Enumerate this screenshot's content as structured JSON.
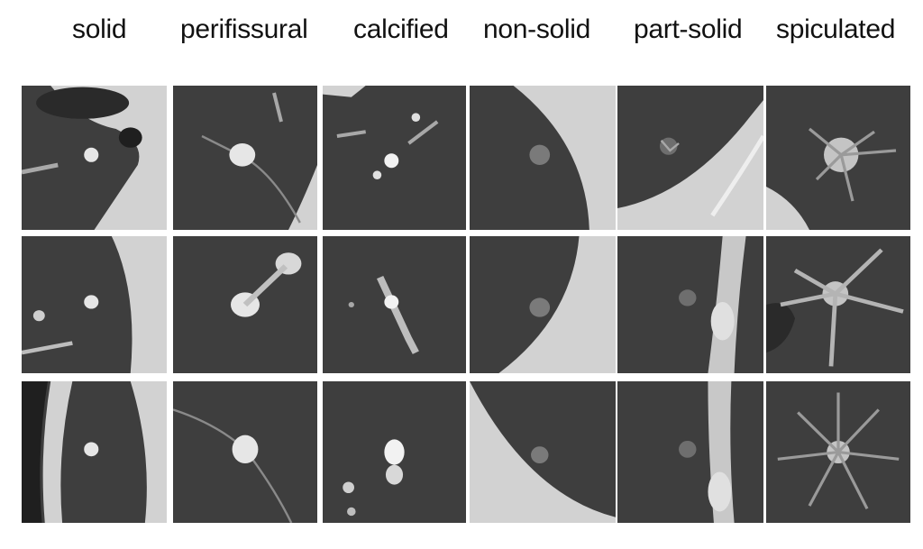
{
  "columns": [
    {
      "label": "solid"
    },
    {
      "label": "perifissural"
    },
    {
      "label": "calcified"
    },
    {
      "label": "non-solid"
    },
    {
      "label": "part-solid"
    },
    {
      "label": "spiculated"
    }
  ],
  "rows": 3,
  "colors": {
    "lung": "#3e3e3e",
    "lung_dark": "#2a2a2a",
    "tissue": "#d2d2d2",
    "nodule": "#e6e6e6",
    "vessel": "#a8a8a8",
    "background": "#ffffff"
  }
}
